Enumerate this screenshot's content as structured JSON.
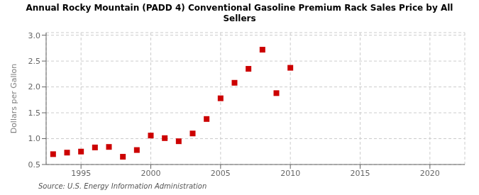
{
  "chart_data": {
    "type": "scatter",
    "title": "Annual Rocky Mountain (PADD 4) Conventional Gasoline Premium Rack Sales Price by All\nSellers",
    "ylabel": "Dollars per Gallon",
    "source": "Source: U.S. Energy Information Administration",
    "x": [
      1993,
      1994,
      1995,
      1996,
      1997,
      1998,
      1999,
      2000,
      2001,
      2002,
      2003,
      2004,
      2005,
      2006,
      2007,
      2008,
      2009,
      2010
    ],
    "values": [
      0.7,
      0.73,
      0.75,
      0.83,
      0.84,
      0.65,
      0.78,
      1.06,
      1.01,
      0.95,
      1.1,
      1.38,
      1.78,
      2.08,
      2.35,
      2.72,
      1.88,
      2.37
    ],
    "color": "#cc0000",
    "marker": "square",
    "xlim": [
      1992.5,
      2022.5
    ],
    "ylim": [
      0.5,
      3.05
    ],
    "xticks": [
      1995,
      2000,
      2005,
      2010,
      2015,
      2020
    ],
    "yticks": [
      0.5,
      {
        "value": 1.0,
        "label": "1.0"
      },
      1.5,
      {
        "value": 2.0,
        "label": "2.0"
      },
      2.5,
      {
        "value": 3.0,
        "label": "3.0"
      }
    ],
    "grid": true
  }
}
